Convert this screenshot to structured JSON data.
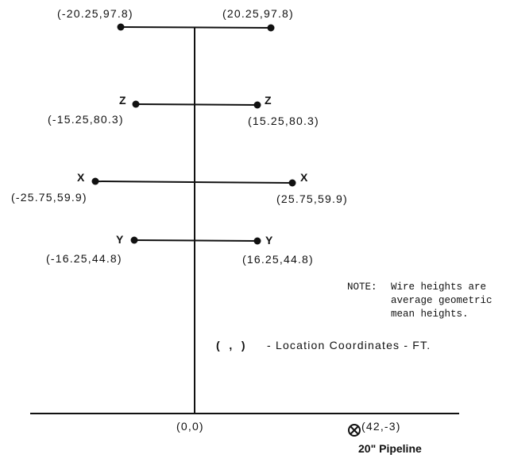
{
  "origin_label": "(0,0)",
  "wire_pairs": [
    {
      "phase": "",
      "left_coord": "(-20.25,97.8)",
      "right_coord": "(20.25,97.8)"
    },
    {
      "phase": "Z",
      "left_coord": "(-15.25,80.3)",
      "right_coord": "(15.25,80.3)"
    },
    {
      "phase": "X",
      "left_coord": "(-25.75,59.9)",
      "right_coord": "(25.75,59.9)"
    },
    {
      "phase": "Y",
      "left_coord": "(-16.25,44.8)",
      "right_coord": "(16.25,44.8)"
    }
  ],
  "pipeline": {
    "coord": "(42,-3)",
    "label": "20\" Pipeline"
  },
  "note": {
    "prefix": "NOTE:",
    "lines": [
      "Wire heights are",
      "average geometric",
      "mean heights."
    ]
  },
  "legend": {
    "symbol": "(   ,   )",
    "text": "- Location Coordinates - FT."
  }
}
